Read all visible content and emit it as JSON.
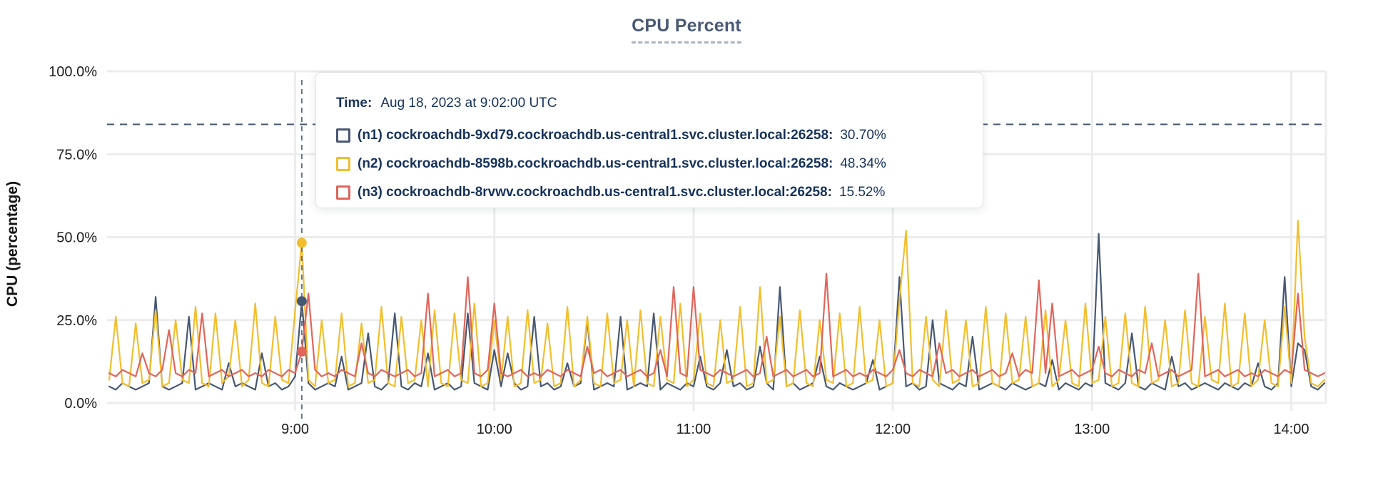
{
  "page": {
    "title": "CPU Percent"
  },
  "colors": {
    "title": "#4a5a75",
    "tooltip_text": "#16325a",
    "grid": "#ececec",
    "threshold_line": "#47586e",
    "hover_line": "#5f7389",
    "series_n1": "#475872",
    "series_n2": "#f2be2e",
    "series_n3": "#e0655c"
  },
  "tooltip": {
    "time_label": "Time:",
    "time_value": "Aug 18, 2023 at 9:02:00 UTC",
    "rows": [
      {
        "label": "(n1) cockroachdb-9xd79.cockroachdb.us-central1.svc.cluster.local:26258:",
        "value": "30.70%",
        "color": "#475872"
      },
      {
        "label": "(n2) cockroachdb-8598b.cockroachdb.us-central1.svc.cluster.local:26258:",
        "value": "48.34%",
        "color": "#f2be2e"
      },
      {
        "label": "(n3) cockroachdb-8rvwv.cockroachdb.us-central1.svc.cluster.local:26258:",
        "value": "15.52%",
        "color": "#e0655c"
      }
    ]
  },
  "chart_data": {
    "type": "line",
    "title": "CPU Percent",
    "xlabel": "",
    "ylabel": "CPU (percentage)",
    "ylim": [
      0,
      100
    ],
    "y_ticks": [
      {
        "value": 0,
        "label": "0.0%"
      },
      {
        "value": 25,
        "label": "25.0%"
      },
      {
        "value": 50,
        "label": "50.0%"
      },
      {
        "value": 75,
        "label": "75.0%"
      },
      {
        "value": 100,
        "label": "100.0%"
      }
    ],
    "x_ticks": [
      {
        "minute": 540,
        "label": "9:00"
      },
      {
        "minute": 600,
        "label": "10:00"
      },
      {
        "minute": 660,
        "label": "11:00"
      },
      {
        "minute": 720,
        "label": "12:00"
      },
      {
        "minute": 780,
        "label": "13:00"
      },
      {
        "minute": 840,
        "label": "14:00"
      }
    ],
    "x_start_min": 484,
    "x_step_min": 2,
    "x_range_label": "8:04 to 14:10 UTC",
    "grid": true,
    "legend_position": "tooltip-only",
    "threshold_line": {
      "value": 84,
      "style": "dashed",
      "color": "#47586e"
    },
    "hover": {
      "time_min": 542,
      "time_label": "9:02:00 UTC",
      "values": {
        "n1": 30.7,
        "n2": 48.34,
        "n3": 15.52
      }
    },
    "series": [
      {
        "name": "(n1) cockroachdb-9xd79.cockroachdb.us-central1.svc.cluster.local:26258",
        "color": "#475872",
        "values": [
          5,
          4,
          6,
          5,
          4,
          5,
          6,
          32,
          5,
          4,
          5,
          6,
          26,
          4,
          5,
          6,
          5,
          4,
          12,
          5,
          6,
          5,
          4,
          15,
          5,
          6,
          4,
          5,
          8,
          30.7,
          6,
          4,
          5,
          6,
          5,
          14,
          4,
          5,
          6,
          21,
          5,
          4,
          6,
          27,
          5,
          4,
          6,
          5,
          15,
          4,
          5,
          6,
          4,
          5,
          27,
          6,
          5,
          4,
          16,
          5,
          15,
          6,
          4,
          5,
          26,
          5,
          6,
          4,
          5,
          12,
          5,
          6,
          25,
          4,
          5,
          6,
          5,
          26,
          4,
          5,
          6,
          5,
          27,
          4,
          6,
          5,
          4,
          6,
          5,
          14,
          5,
          4,
          6,
          16,
          5,
          6,
          4,
          5,
          17,
          6,
          4,
          35,
          5,
          6,
          4,
          5,
          6,
          14,
          5,
          4,
          6,
          5,
          4,
          5,
          6,
          13,
          4,
          5,
          6,
          38,
          5,
          6,
          4,
          5,
          25,
          6,
          5,
          4,
          6,
          5,
          20,
          4,
          5,
          6,
          5,
          4,
          6,
          5,
          4,
          5,
          6,
          5,
          13,
          4,
          6,
          5,
          4,
          6,
          5,
          51,
          6,
          5,
          4,
          6,
          21,
          5,
          4,
          6,
          5,
          4,
          14,
          5,
          6,
          4,
          5,
          6,
          5,
          4,
          6,
          5,
          4,
          6,
          5,
          12,
          5,
          4,
          6,
          38,
          5,
          18,
          16,
          5,
          4,
          6
        ]
      },
      {
        "name": "(n2) cockroachdb-8598b.cockroachdb.us-central1.svc.cluster.local:26258",
        "color": "#f2be2e",
        "values": [
          7,
          26,
          6,
          5,
          24,
          6,
          7,
          28,
          5,
          6,
          25,
          7,
          6,
          29,
          6,
          5,
          27,
          6,
          8,
          25,
          5,
          7,
          30,
          6,
          5,
          26,
          7,
          6,
          28,
          48.3,
          7,
          5,
          25,
          6,
          7,
          27,
          5,
          6,
          24,
          6,
          7,
          29,
          6,
          5,
          26,
          6,
          7,
          25,
          5,
          28,
          6,
          5,
          27,
          7,
          6,
          30,
          5,
          6,
          25,
          7,
          26,
          5,
          6,
          28,
          6,
          7,
          24,
          5,
          6,
          29,
          5,
          7,
          26,
          6,
          5,
          27,
          6,
          7,
          25,
          5,
          28,
          6,
          5,
          26,
          7,
          6,
          30,
          5,
          7,
          27,
          6,
          5,
          25,
          6,
          7,
          29,
          5,
          6,
          35,
          6,
          7,
          26,
          5,
          6,
          28,
          6,
          5,
          25,
          7,
          6,
          27,
          5,
          6,
          29,
          6,
          7,
          25,
          5,
          6,
          31,
          52,
          6,
          5,
          26,
          7,
          5,
          28,
          6,
          7,
          25,
          5,
          6,
          29,
          6,
          5,
          27,
          6,
          7,
          26,
          5,
          6,
          28,
          5,
          7,
          25,
          6,
          5,
          30,
          6,
          7,
          26,
          5,
          6,
          27,
          6,
          5,
          29,
          6,
          7,
          25,
          5,
          6,
          28,
          6,
          5,
          26,
          7,
          6,
          30,
          5,
          6,
          27,
          5,
          7,
          25,
          6,
          5,
          29,
          6,
          55,
          20,
          6,
          5,
          7
        ]
      },
      {
        "name": "(n3) cockroachdb-8rvwv.cockroachdb.us-central1.svc.cluster.local:26258",
        "color": "#e0655c",
        "values": [
          9,
          8,
          10,
          9,
          8,
          15,
          9,
          8,
          10,
          22,
          9,
          8,
          10,
          9,
          27,
          8,
          9,
          10,
          8,
          9,
          10,
          8,
          9,
          8,
          10,
          9,
          8,
          10,
          9,
          15.5,
          33,
          10,
          8,
          9,
          8,
          10,
          9,
          8,
          18,
          9,
          8,
          10,
          9,
          8,
          9,
          10,
          8,
          9,
          33,
          8,
          9,
          10,
          8,
          9,
          38,
          9,
          8,
          10,
          30,
          9,
          8,
          9,
          10,
          8,
          9,
          8,
          10,
          9,
          8,
          10,
          9,
          8,
          17,
          9,
          10,
          8,
          9,
          10,
          8,
          9,
          10,
          8,
          9,
          16,
          8,
          35,
          9,
          8,
          35,
          10,
          9,
          8,
          10,
          9,
          8,
          9,
          10,
          8,
          9,
          20,
          8,
          9,
          10,
          8,
          9,
          10,
          8,
          9,
          39,
          8,
          9,
          10,
          8,
          9,
          8,
          10,
          9,
          8,
          10,
          16,
          9,
          8,
          10,
          9,
          8,
          18,
          9,
          10,
          8,
          9,
          10,
          8,
          9,
          10,
          8,
          9,
          15,
          8,
          10,
          9,
          37,
          9,
          30,
          8,
          9,
          10,
          8,
          9,
          10,
          17,
          9,
          8,
          10,
          9,
          8,
          10,
          9,
          18,
          8,
          9,
          10,
          8,
          9,
          10,
          39,
          8,
          9,
          10,
          8,
          9,
          10,
          8,
          9,
          8,
          10,
          9,
          8,
          10,
          9,
          33,
          10,
          9,
          8,
          9
        ]
      }
    ]
  }
}
